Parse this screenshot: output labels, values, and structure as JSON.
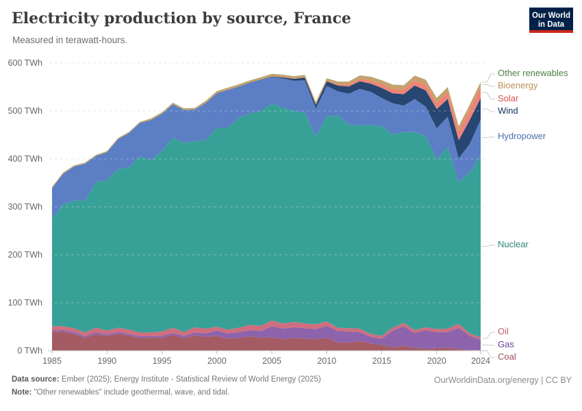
{
  "header": {
    "title": "Electricity production by source, France",
    "subtitle": "Measured in terawatt-hours."
  },
  "logo": {
    "line1": "Our World",
    "line2": "in Data",
    "bg_color": "#002147",
    "accent_color": "#CE261E"
  },
  "footer": {
    "source_label": "Data source:",
    "source_text": " Ember (2025); Energy Institute - Statistical Review of World Energy (2025)",
    "note_label": "Note:",
    "note_text": " \"Other renewables\" include geothermal, wave, and tidal.",
    "link": "OurWorldinData.org/energy | CC BY"
  },
  "chart_data": {
    "type": "area",
    "stacked": true,
    "title": "Electricity production by source, France",
    "unit": "TWh",
    "ylim": [
      0,
      600
    ],
    "y_ticks": [
      0,
      100,
      200,
      300,
      400,
      500,
      600
    ],
    "y_tick_suffix": " TWh",
    "x_ticks": [
      1985,
      1990,
      1995,
      2000,
      2005,
      2010,
      2015,
      2020,
      2024
    ],
    "grid": "dashed",
    "legend_position": "right",
    "x": [
      1985,
      1986,
      1987,
      1988,
      1989,
      1990,
      1991,
      1992,
      1993,
      1994,
      1995,
      1996,
      1997,
      1998,
      1999,
      2000,
      2001,
      2002,
      2003,
      2004,
      2005,
      2006,
      2007,
      2008,
      2009,
      2010,
      2011,
      2012,
      2013,
      2014,
      2015,
      2016,
      2017,
      2018,
      2019,
      2020,
      2021,
      2022,
      2023,
      2024
    ],
    "series": [
      {
        "id": "coal",
        "label": "Coal",
        "color": "#A45B63",
        "label_color": "#9D4E5C",
        "values": [
          39,
          40,
          35,
          27,
          34,
          31,
          35,
          32,
          27,
          27,
          27,
          33,
          26,
          32,
          29,
          31,
          25,
          27,
          30,
          27,
          28,
          24,
          27,
          25,
          24,
          27,
          17,
          17,
          20,
          15,
          12,
          7,
          10,
          6,
          4,
          5,
          6,
          4,
          1,
          1
        ]
      },
      {
        "id": "gas",
        "label": "Gas",
        "color": "#8D64AB",
        "label_color": "#6D3E91",
        "values": [
          3,
          3,
          4,
          3,
          4,
          3,
          4,
          3,
          3,
          3,
          4,
          4,
          5,
          6,
          7,
          11,
          11,
          12,
          13,
          14,
          23,
          22,
          22,
          22,
          21,
          25,
          24,
          23,
          19,
          14,
          13,
          35,
          41,
          31,
          39,
          34,
          33,
          44,
          30,
          22
        ]
      },
      {
        "id": "oil",
        "label": "Oil",
        "color": "#CF6E7F",
        "label_color": "#C05A6B",
        "values": [
          9,
          8,
          8,
          8,
          10,
          8,
          9,
          9,
          8,
          8,
          9,
          11,
          8,
          11,
          10,
          8,
          8,
          9,
          11,
          11,
          12,
          11,
          11,
          10,
          10,
          9,
          7,
          7,
          7,
          6,
          6,
          6,
          7,
          6,
          6,
          6,
          7,
          8,
          5,
          5
        ]
      },
      {
        "id": "nuclear",
        "label": "Nuclear",
        "color": "#38A197",
        "label_color": "#2C8478",
        "values": [
          224,
          254,
          266,
          275,
          304,
          314,
          331,
          338,
          368,
          359,
          377,
          397,
          395,
          388,
          394,
          415,
          421,
          437,
          441,
          448,
          452,
          450,
          440,
          439,
          392,
          428,
          442,
          425,
          424,
          436,
          437,
          403,
          398,
          413,
          399,
          354,
          379,
          295,
          336,
          379
        ]
      },
      {
        "id": "hydropower",
        "label": "Hydropower",
        "color": "#5B7EC5",
        "label_color": "#4C6FB1",
        "values": [
          64,
          64,
          71,
          77,
          54,
          58,
          62,
          72,
          69,
          84,
          77,
          69,
          68,
          66,
          77,
          72,
          79,
          66,
          64,
          65,
          56,
          61,
          63,
          68,
          58,
          63,
          51,
          64,
          76,
          69,
          59,
          65,
          55,
          69,
          61,
          65,
          63,
          50,
          59,
          75
        ]
      },
      {
        "id": "wind",
        "label": "Wind",
        "color": "#274672",
        "label_color": "#0E2E5C",
        "values": [
          0,
          0,
          0,
          0,
          0,
          0,
          0,
          0,
          0,
          0,
          0,
          0,
          0,
          0,
          0,
          0.1,
          0.1,
          0.3,
          0.4,
          0.6,
          1,
          2.2,
          4,
          5.7,
          7.9,
          9.9,
          12,
          15,
          16,
          17,
          21,
          21,
          24,
          28,
          34,
          40,
          37,
          38,
          50,
          45
        ]
      },
      {
        "id": "solar",
        "label": "Solar",
        "color": "#EE8377",
        "label_color": "#D6524E",
        "values": [
          0,
          0,
          0,
          0,
          0,
          0,
          0,
          0,
          0,
          0,
          0,
          0,
          0,
          0,
          0,
          0,
          0,
          0,
          0,
          0,
          0,
          0,
          0,
          0,
          0.2,
          0.6,
          2,
          4,
          4.6,
          5.9,
          7.4,
          8.3,
          9.2,
          10.2,
          11.6,
          12.6,
          14.3,
          18.6,
          21.5,
          23
        ]
      },
      {
        "id": "bioenergy",
        "label": "Bioenergy",
        "color": "#C9A06C",
        "label_color": "#BC8E5A",
        "values": [
          2,
          2,
          2,
          2,
          2,
          2,
          2,
          2,
          2,
          3,
          3,
          3,
          3,
          3,
          4,
          4,
          4,
          4,
          4,
          4,
          5,
          5,
          5,
          5,
          5,
          5,
          6,
          6,
          7,
          8,
          8,
          9,
          9,
          10,
          10,
          10,
          10,
          10,
          10,
          10
        ]
      },
      {
        "id": "other_renewables",
        "label": "Other renewables",
        "color": "#6E9C5E",
        "label_color": "#4C8045",
        "values": [
          0.4,
          0.4,
          0.4,
          0.4,
          0.4,
          0.4,
          0.4,
          0.4,
          0.4,
          0.4,
          0.4,
          0.4,
          0.4,
          0.4,
          0.4,
          0.4,
          0.4,
          0.4,
          0.4,
          0.5,
          0.5,
          0.5,
          0.5,
          0.5,
          0.5,
          0.5,
          0.5,
          0.5,
          0.5,
          0.5,
          0.5,
          0.5,
          0.5,
          0.5,
          0.5,
          0.5,
          0.5,
          0.6,
          0.6,
          0.6
        ]
      }
    ]
  }
}
